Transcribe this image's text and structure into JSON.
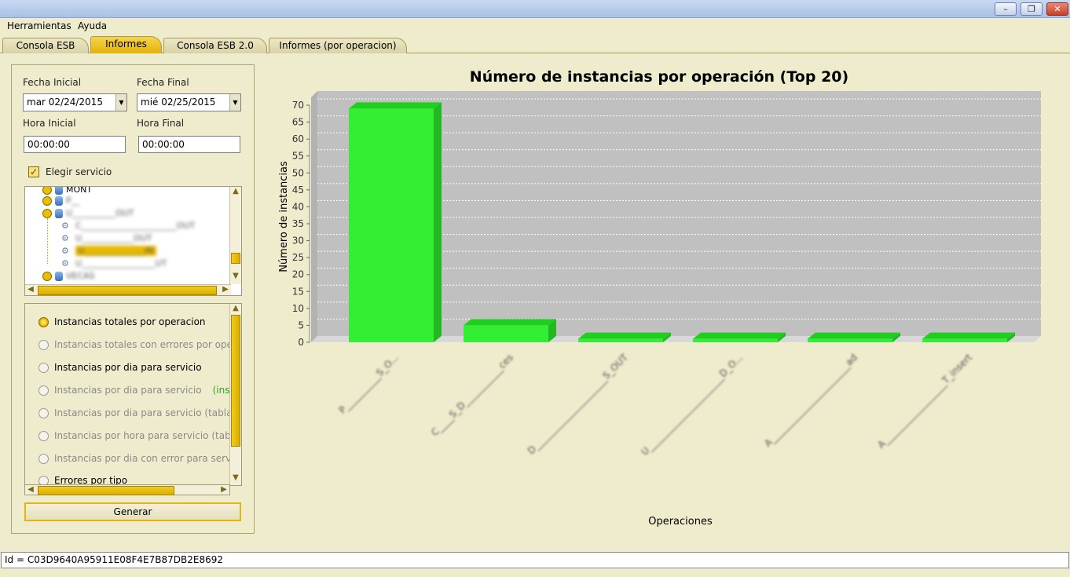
{
  "window": {
    "buttons": [
      "minimize",
      "restore",
      "close"
    ]
  },
  "menu": [
    "Herramientas",
    "Ayuda"
  ],
  "tabs": [
    {
      "label": "Consola ESB",
      "active": false
    },
    {
      "label": "Informes",
      "active": true
    },
    {
      "label": "Consola ESB 2.0",
      "active": false
    },
    {
      "label": "Informes (por operacion)",
      "active": false
    }
  ],
  "filters": {
    "fecha_inicial_label": "Fecha Inicial",
    "fecha_inicial_value": "mar 02/24/2015",
    "fecha_final_label": "Fecha Final",
    "fecha_final_value": "mié 02/25/2015",
    "hora_inicial_label": "Hora Inicial",
    "hora_inicial_value": "00:00:00",
    "hora_final_label": "Hora Final",
    "hora_final_value": "00:00:00",
    "elegir_servicio_label": "Elegir servicio",
    "elegir_servicio_checked": true
  },
  "tree": [
    {
      "text": "MONT",
      "level": 0,
      "type": "service",
      "blurred": false
    },
    {
      "text": "P__",
      "level": 0,
      "type": "service",
      "blurred": true
    },
    {
      "text": "U__________OUT",
      "level": 0,
      "type": "service",
      "blurred": true
    },
    {
      "text": "C______________________OUT",
      "level": 1,
      "type": "operation",
      "blurred": true
    },
    {
      "text": "U____________OUT",
      "level": 1,
      "type": "operation",
      "blurred": true
    },
    {
      "text": "U______________IN",
      "level": 1,
      "type": "operation",
      "blurred": true,
      "selected": true
    },
    {
      "text": "U_________________UT",
      "level": 1,
      "type": "operation",
      "blurred": true
    },
    {
      "text": "VECAS",
      "level": 0,
      "type": "service",
      "blurred": true
    }
  ],
  "report_types": [
    {
      "label": "Instancias totales por operacion",
      "selected": true,
      "enabled": true
    },
    {
      "label": "Instancias totales con errores por opera",
      "selected": false,
      "enabled": false
    },
    {
      "label": "Instancias por dia para servicio",
      "selected": false,
      "enabled": true
    },
    {
      "label": "Instancias por dia para servicio",
      "extra": "(instan",
      "selected": false,
      "enabled": false
    },
    {
      "label": "Instancias por dia para servicio (tabla su",
      "selected": false,
      "enabled": false
    },
    {
      "label": "Instancias por hora para servicio (tabla s",
      "selected": false,
      "enabled": false
    },
    {
      "label": "Instancias por dia con error para servicio",
      "selected": false,
      "enabled": false
    },
    {
      "label": "Errores por tipo",
      "selected": false,
      "enabled": true
    }
  ],
  "generar_label": "Generar",
  "chart_data": {
    "type": "bar",
    "title": "Número de instancias por operación (Top 20)",
    "xlabel": "Operaciones",
    "ylabel": "Número de instancias",
    "ylim": [
      0,
      70
    ],
    "yticks": [
      0,
      5,
      10,
      15,
      20,
      25,
      30,
      35,
      40,
      45,
      50,
      55,
      60,
      65,
      70
    ],
    "grid": true,
    "legend": "none",
    "bar_color": "#33ee33",
    "categories": [
      "P__________S_O...",
      "C____S_D___________ces",
      "D_____________________S_OUT",
      "U______________________D_O...",
      "A_______________________ad",
      "A__________________T_insert"
    ],
    "values": [
      69,
      5,
      1,
      1,
      1,
      1
    ]
  },
  "status_text": "Id = C03D9640A95911E08F4E7B87DB2E8692",
  "colors": {
    "accent": "#e6b800",
    "panel_bg": "#efebcd",
    "plot_bg": "#c0c0c0"
  }
}
